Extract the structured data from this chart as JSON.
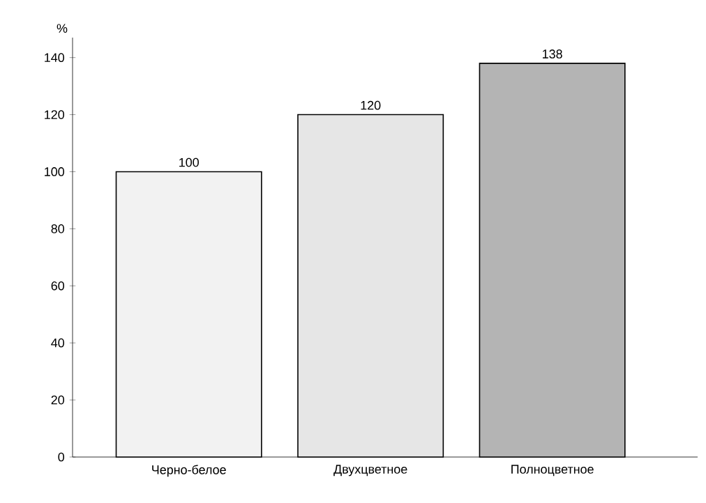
{
  "chart_data": {
    "type": "bar",
    "ylabel": "%",
    "categories": [
      "Черно-белое",
      "Двухцветное",
      "Полноцветное"
    ],
    "values": [
      100,
      120,
      138
    ],
    "colors": [
      "#f2f2f2",
      "#e6e6e6",
      "#b4b4b4"
    ],
    "ylim": [
      0,
      147
    ],
    "yticks": [
      0,
      20,
      40,
      60,
      80,
      100,
      120,
      140
    ],
    "data_labels": true,
    "grid": false
  }
}
